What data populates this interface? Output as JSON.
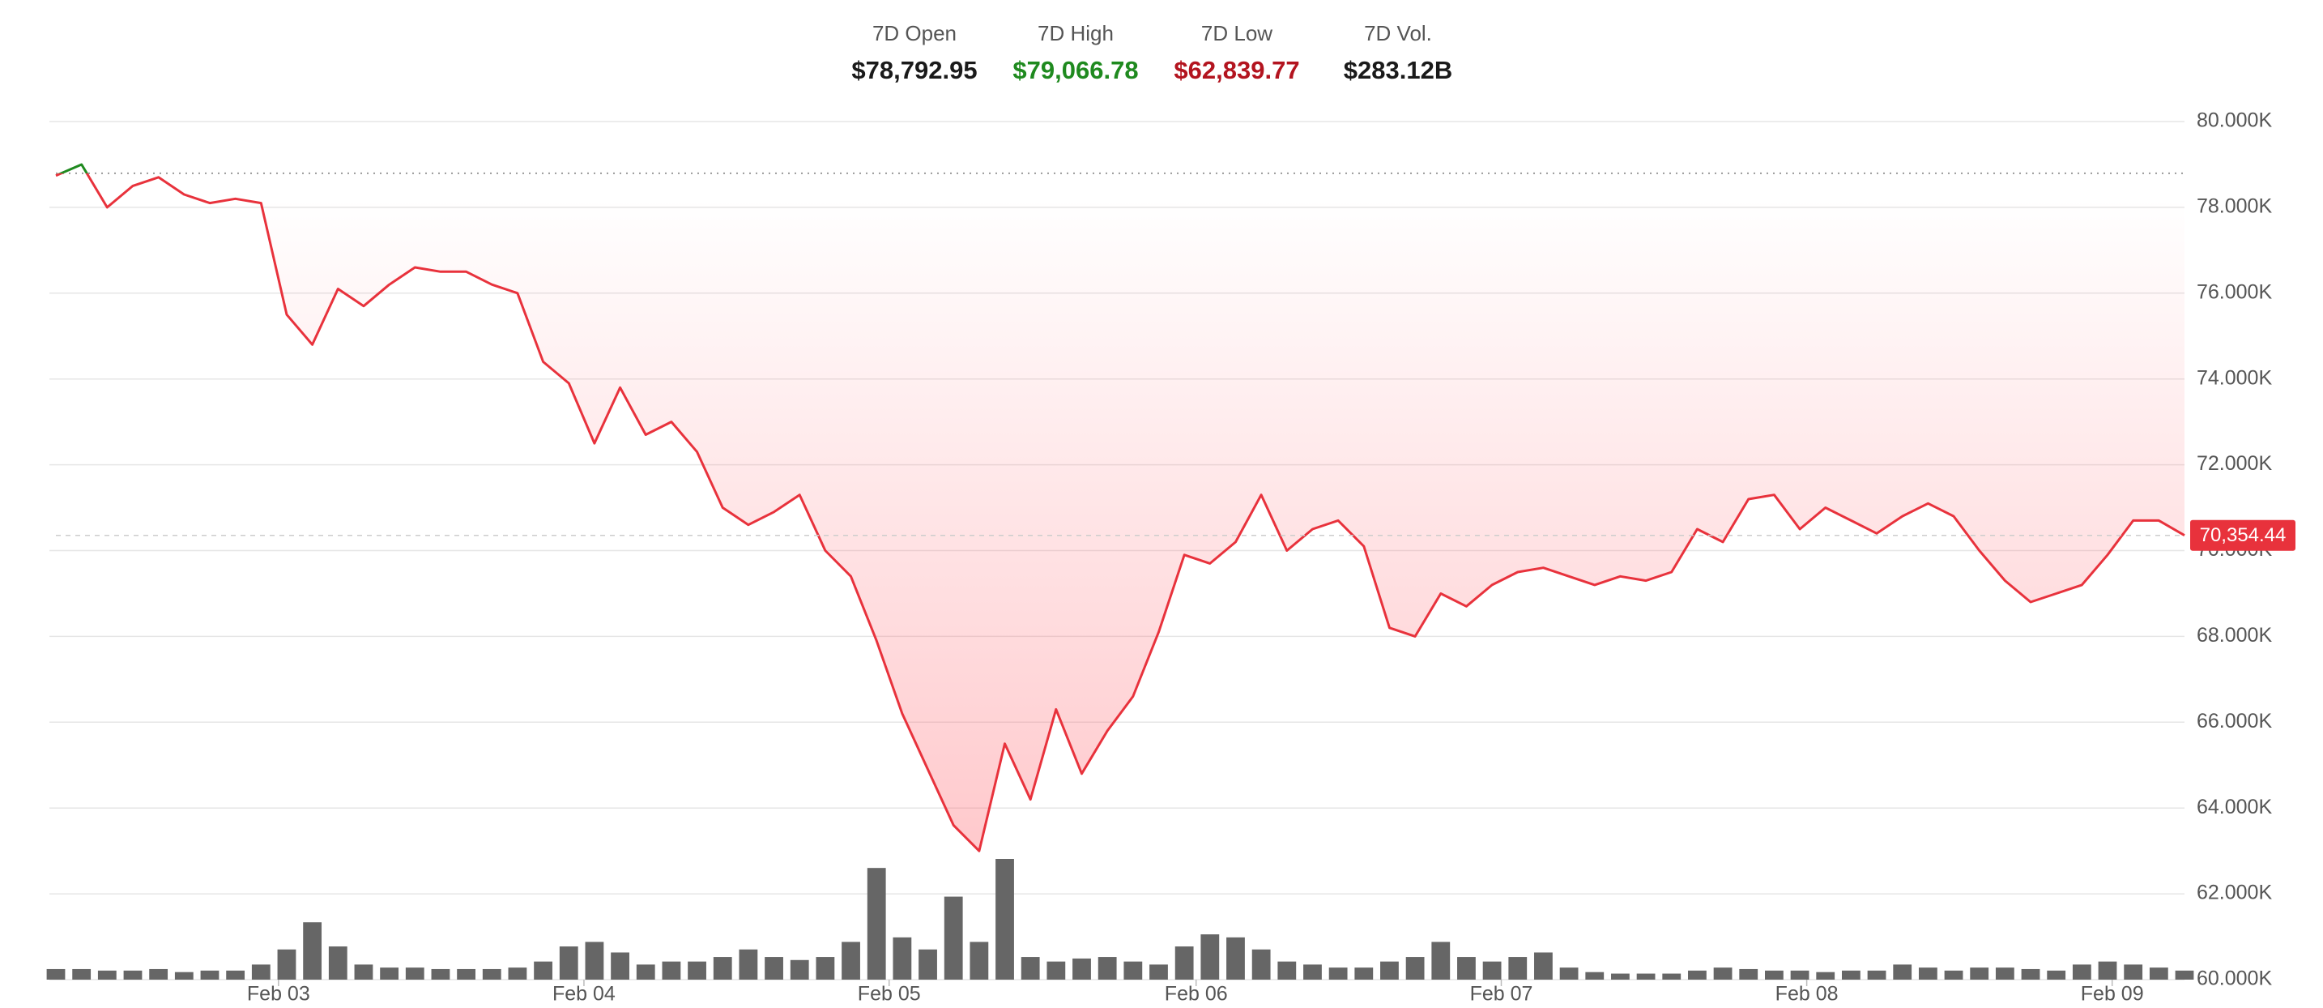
{
  "chart_data": {
    "type": "line",
    "stats": [
      {
        "label": "7D Open",
        "value": 78792.95,
        "value_label": "$78,792.95",
        "color": "#1a1a1a"
      },
      {
        "label": "7D High",
        "value": 79066.78,
        "value_label": "$79,066.78",
        "color": "#1f8a1f"
      },
      {
        "label": "7D Low",
        "value": 62839.77,
        "value_label": "$62,839.77",
        "color": "#b3141f"
      },
      {
        "label": "7D Vol.",
        "value": 283120000000,
        "value_label": "$283.12B",
        "color": "#1a1a1a"
      }
    ],
    "values": [
      78740,
      79000,
      78000,
      78500,
      78700,
      78300,
      78100,
      78200,
      78100,
      75500,
      74800,
      76100,
      75700,
      76200,
      76600,
      76500,
      76500,
      76200,
      76000,
      74400,
      73900,
      72500,
      73800,
      72700,
      73000,
      72300,
      71000,
      70600,
      70900,
      71300,
      70000,
      69400,
      67900,
      66200,
      64900,
      63600,
      63000,
      65500,
      64200,
      66300,
      64800,
      65800,
      66600,
      68100,
      69900,
      69700,
      70200,
      71300,
      70000,
      70500,
      70700,
      70100,
      68200,
      68000,
      69000,
      68700,
      69200,
      69500,
      69600,
      69400,
      69200,
      69400,
      69300,
      69500,
      70500,
      70200,
      71200,
      71300,
      70500,
      71000,
      70700,
      70400,
      70800,
      71100,
      70800,
      70000,
      69300,
      68800,
      69000,
      69200,
      69900,
      70700,
      70700,
      70354.44
    ],
    "last_value_label": "70,354.44",
    "volume": [
      7,
      7,
      6,
      6,
      7,
      5,
      6,
      6,
      10,
      20,
      38,
      22,
      10,
      8,
      8,
      7,
      7,
      7,
      8,
      12,
      22,
      25,
      18,
      10,
      12,
      12,
      15,
      20,
      15,
      13,
      15,
      25,
      74,
      28,
      20,
      55,
      25,
      80,
      15,
      12,
      14,
      15,
      12,
      10,
      22,
      30,
      28,
      20,
      12,
      10,
      8,
      8,
      12,
      15,
      25,
      15,
      12,
      15,
      18,
      8,
      5,
      4,
      4,
      4,
      6,
      8,
      7,
      6,
      6,
      5,
      6,
      6,
      10,
      8,
      6,
      8,
      8,
      7,
      6,
      10,
      12,
      10,
      8,
      6
    ],
    "xlim": [
      0,
      83
    ],
    "xticks": [
      {
        "value": 8.68,
        "label": "Feb 03"
      },
      {
        "value": 20.59,
        "label": "Feb 04"
      },
      {
        "value": 32.49,
        "label": "Feb 05"
      },
      {
        "value": 44.46,
        "label": "Feb 06"
      },
      {
        "value": 56.36,
        "label": "Feb 07"
      },
      {
        "value": 68.27,
        "label": "Feb 08"
      },
      {
        "value": 80.18,
        "label": "Feb 09"
      }
    ],
    "ylim": [
      60000,
      80000
    ],
    "yticks": [
      {
        "value": 60000,
        "label": "60.000K"
      },
      {
        "value": 62000,
        "label": "62.000K"
      },
      {
        "value": 64000,
        "label": "64.000K"
      },
      {
        "value": 66000,
        "label": "66.000K"
      },
      {
        "value": 68000,
        "label": "68.000K"
      },
      {
        "value": 70000,
        "label": "70.000K"
      },
      {
        "value": 72000,
        "label": "72.000K"
      },
      {
        "value": 74000,
        "label": "74.000K"
      },
      {
        "value": 76000,
        "label": "76.000K"
      },
      {
        "value": 78000,
        "label": "78.000K"
      },
      {
        "value": 80000,
        "label": "80.000K"
      }
    ],
    "grid": true,
    "up_color": "#1f8a1f",
    "down_color": "#e8323c",
    "volume_color": "#666666"
  }
}
